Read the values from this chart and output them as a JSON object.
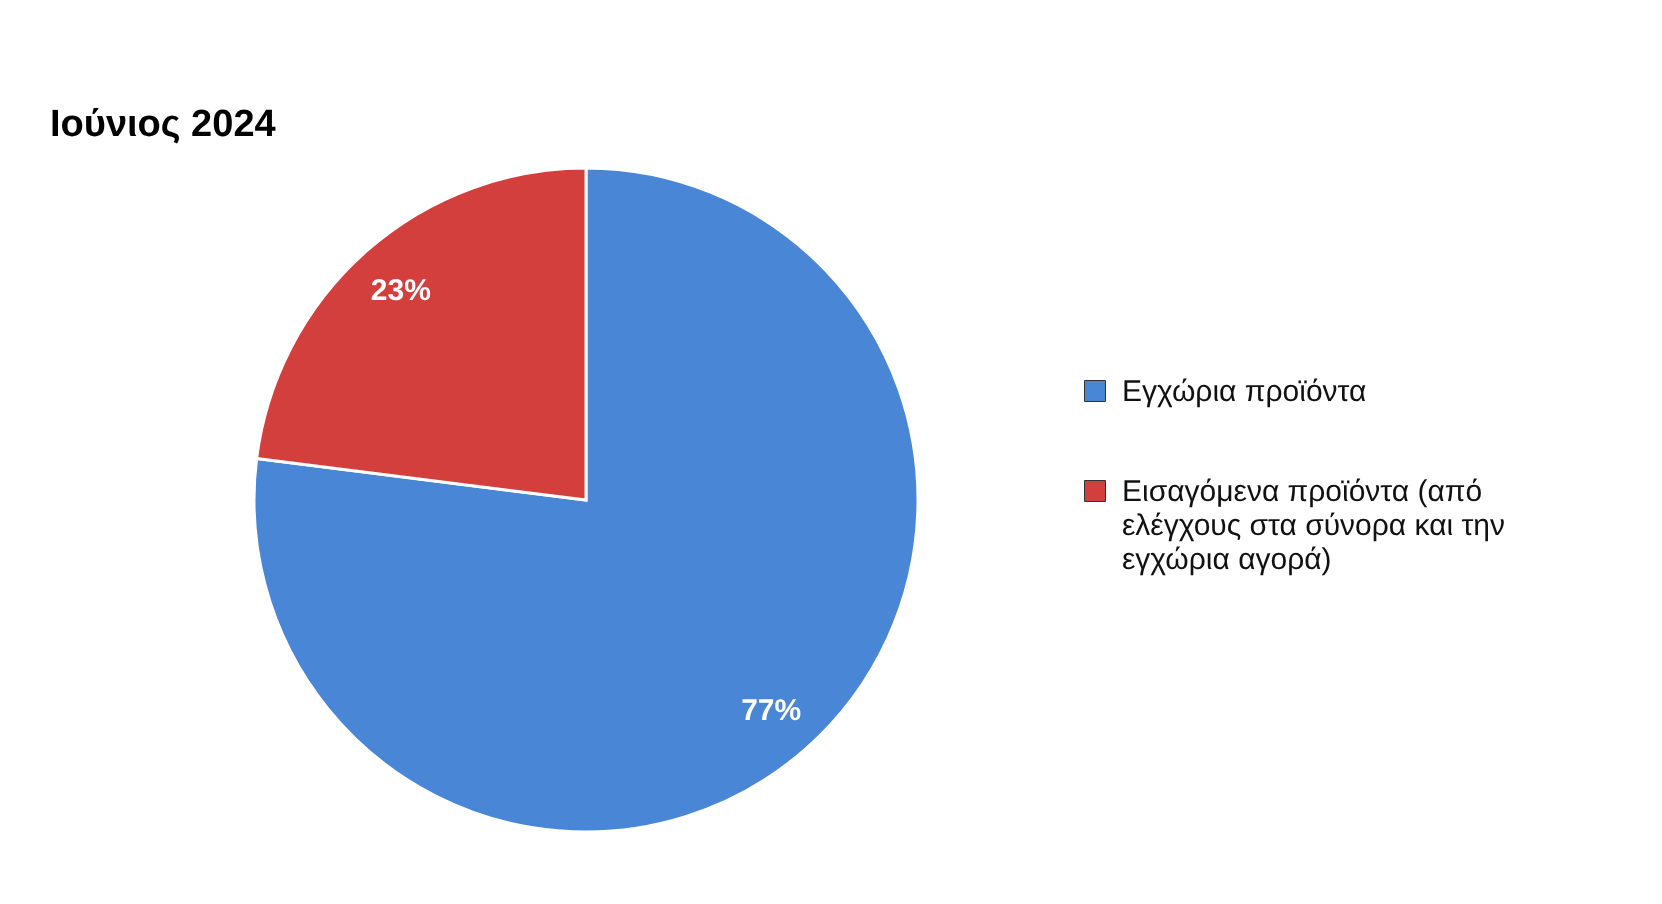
{
  "chart_data": {
    "type": "pie",
    "title": "Ιούνιος 2024",
    "categories": [
      "Εγχώρια προϊόντα",
      "Εισαγόμενα προϊόντα (από ελέγχους στα σύνορα και την εγχώρια αγορά)"
    ],
    "values": [
      77,
      23
    ],
    "colors": [
      "#4a86d6",
      "#d33f3d"
    ],
    "value_labels": [
      "77%",
      "23%"
    ],
    "legend": "right"
  }
}
